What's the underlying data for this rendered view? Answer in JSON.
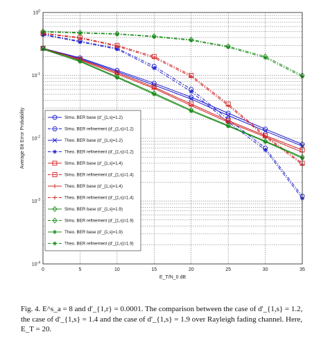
{
  "chart_data": {
    "type": "line",
    "xlabel": "E_T/N_0 dB",
    "ylabel": "Average Bit Error Probability",
    "x": [
      0,
      5,
      10,
      15,
      20,
      25,
      30,
      35
    ],
    "xlim": [
      0,
      35
    ],
    "ylim": [
      0.0001,
      1
    ],
    "yscale": "log",
    "xticks": [
      "0",
      "5",
      "10",
      "15",
      "20",
      "25",
      "30",
      "35"
    ],
    "yticks": [
      "10^-4",
      "10^-3",
      "10^-2",
      "10^-1",
      "10^0"
    ],
    "grid": true,
    "legend_position": "left",
    "series": [
      {
        "name": "Simu. BER base (d'_{1,s}=1.2)",
        "color": "#1f1fcf",
        "marker": "circle",
        "dash": "solid",
        "values": [
          0.27,
          0.19,
          0.12,
          0.075,
          0.045,
          0.025,
          0.014,
          0.008
        ]
      },
      {
        "name": "Simu. BER refinement (d'_{1,s}=1.2)",
        "color": "#1f1fcf",
        "marker": "circle",
        "dash": "dashdot",
        "values": [
          0.45,
          0.35,
          0.27,
          0.14,
          0.06,
          0.02,
          0.007,
          0.0012
        ]
      },
      {
        "name": "Theo. BER base (d'_{1,s}=1.2)",
        "color": "#1f1fcf",
        "marker": "x",
        "dash": "solid",
        "values": [
          0.265,
          0.185,
          0.115,
          0.07,
          0.042,
          0.023,
          0.013,
          0.0075
        ]
      },
      {
        "name": "Theo. BER refinement (d'_{1,s}=1.2)",
        "color": "#1f1fcf",
        "marker": "star",
        "dash": "dashdot",
        "values": [
          0.44,
          0.34,
          0.26,
          0.13,
          0.055,
          0.018,
          0.0065,
          0.0011
        ]
      },
      {
        "name": "Simu. BER base (d'_{1,s}=1.4)",
        "color": "#d02020",
        "marker": "square",
        "dash": "solid",
        "values": [
          0.27,
          0.18,
          0.11,
          0.065,
          0.035,
          0.019,
          0.011,
          0.0065
        ]
      },
      {
        "name": "Simu. BER refinement (d'_{1,s}=1.4)",
        "color": "#d02020",
        "marker": "square",
        "dash": "dashdot",
        "values": [
          0.47,
          0.4,
          0.3,
          0.2,
          0.1,
          0.035,
          0.011,
          0.004
        ]
      },
      {
        "name": "Theo. BER base (d'_{1,s}=1.4)",
        "color": "#d02020",
        "marker": "plus",
        "dash": "solid",
        "values": [
          0.26,
          0.175,
          0.105,
          0.062,
          0.033,
          0.018,
          0.0105,
          0.006
        ]
      },
      {
        "name": "Theo. BER refinement (d'_{1,s}=1.4)",
        "color": "#d02020",
        "marker": "plus",
        "dash": "dashdot",
        "values": [
          0.46,
          0.39,
          0.29,
          0.19,
          0.095,
          0.033,
          0.0105,
          0.0038
        ]
      },
      {
        "name": "Simu. BER base (d'_{1,s}=1.9)",
        "color": "#1a8c1a",
        "marker": "diamond",
        "dash": "solid",
        "values": [
          0.27,
          0.17,
          0.095,
          0.052,
          0.028,
          0.016,
          0.009,
          0.005
        ]
      },
      {
        "name": "Simu. BER refinement (d'_{1,s}=1.9)",
        "color": "#1a8c1a",
        "marker": "diamond",
        "dash": "dashdot",
        "values": [
          0.5,
          0.48,
          0.46,
          0.42,
          0.37,
          0.29,
          0.2,
          0.1
        ]
      },
      {
        "name": "Theo. BER base (d'_{1,s}=1.9)",
        "color": "#1a8c1a",
        "marker": "star",
        "dash": "solid",
        "values": [
          0.26,
          0.165,
          0.092,
          0.05,
          0.027,
          0.0155,
          0.0088,
          0.0048
        ]
      },
      {
        "name": "Theo. BER refinement (d'_{1,s}=1.9)",
        "color": "#1a8c1a",
        "marker": "star",
        "dash": "dashdot",
        "values": [
          0.49,
          0.47,
          0.45,
          0.41,
          0.36,
          0.28,
          0.19,
          0.095
        ]
      }
    ]
  },
  "caption": {
    "text": "Fig. 4.  E^s_a = 8 and d'_{1,r} = 0.0001. The comparison between the case of d'_{1,s} = 1.2, the case of d'_{1,s} = 1.4 and the case of d'_{1,s} = 1.9 over Rayleigh fading channel. Here, E_T = 20."
  }
}
